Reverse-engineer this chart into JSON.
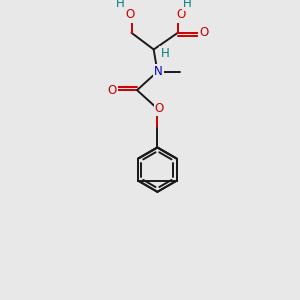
{
  "background_color": "#e8e8e8",
  "atom_colors": {
    "C": "#1a1a1a",
    "O": "#cc0000",
    "N": "#0000cc",
    "H": "#008080"
  },
  "figsize": [
    3.0,
    3.0
  ],
  "dpi": 100,
  "bond_lw": 1.4,
  "font_size": 8.5
}
